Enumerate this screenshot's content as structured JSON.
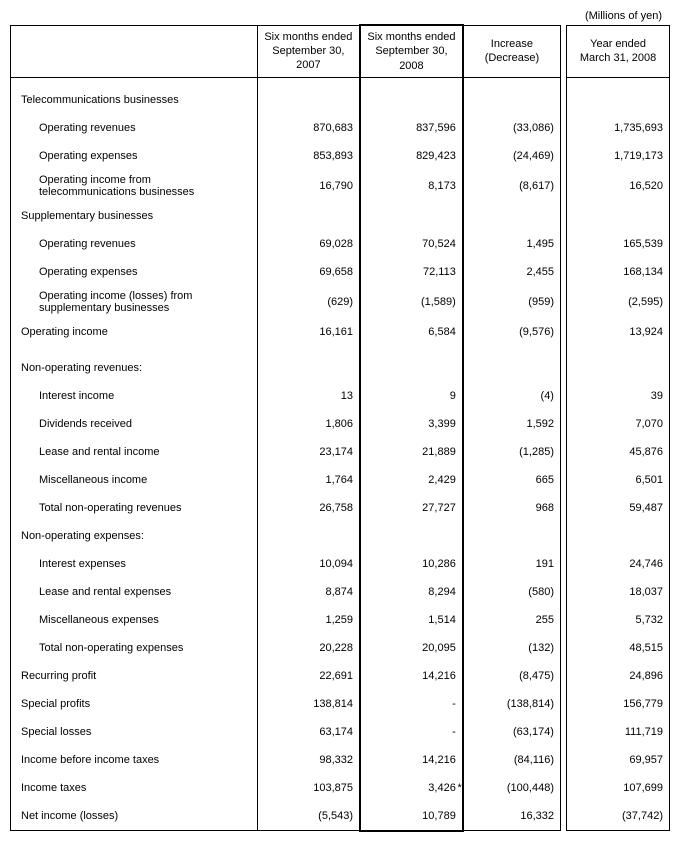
{
  "unit_label": "(Millions of yen)",
  "columns": {
    "c1": "Six months ended\nSeptember 30, 2007",
    "c2": "Six months ended\nSeptember 30, 2008",
    "c3": "Increase\n(Decrease)",
    "c4": "Year ended\nMarch 31, 2008"
  },
  "rows": {
    "telecom_header": "Telecommunications businesses",
    "telecom_rev": {
      "label": "Operating revenues",
      "c1": "870,683",
      "c2": "837,596",
      "c3": "(33,086)",
      "c4": "1,735,693"
    },
    "telecom_exp": {
      "label": "Operating expenses",
      "c1": "853,893",
      "c2": "829,423",
      "c3": "(24,469)",
      "c4": "1,719,173"
    },
    "telecom_inc": {
      "label": "Operating income from telecommunications businesses",
      "c1": "16,790",
      "c2": "8,173",
      "c3": "(8,617)",
      "c4": "16,520"
    },
    "supp_header": "Supplementary businesses",
    "supp_rev": {
      "label": "Operating revenues",
      "c1": "69,028",
      "c2": "70,524",
      "c3": "1,495",
      "c4": "165,539"
    },
    "supp_exp": {
      "label": "Operating expenses",
      "c1": "69,658",
      "c2": "72,113",
      "c3": "2,455",
      "c4": "168,134"
    },
    "supp_inc": {
      "label": "Operating income (losses) from supplementary businesses",
      "c1": "(629)",
      "c2": "(1,589)",
      "c3": "(959)",
      "c4": "(2,595)"
    },
    "op_income": {
      "label": "Operating income",
      "c1": "16,161",
      "c2": "6,584",
      "c3": "(9,576)",
      "c4": "13,924"
    },
    "nor_header": "Non-operating revenues:",
    "interest_inc": {
      "label": "Interest income",
      "c1": "13",
      "c2": "9",
      "c3": "(4)",
      "c4": "39"
    },
    "dividends": {
      "label": "Dividends received",
      "c1": "1,806",
      "c2": "3,399",
      "c3": "1,592",
      "c4": "7,070"
    },
    "lease_inc": {
      "label": "Lease and rental income",
      "c1": "23,174",
      "c2": "21,889",
      "c3": "(1,285)",
      "c4": "45,876"
    },
    "misc_inc": {
      "label": "Miscellaneous income",
      "c1": "1,764",
      "c2": "2,429",
      "c3": "665",
      "c4": "6,501"
    },
    "total_nor": {
      "label": "Total non-operating revenues",
      "c1": "26,758",
      "c2": "27,727",
      "c3": "968",
      "c4": "59,487"
    },
    "noe_header": "Non-operating expenses:",
    "interest_exp": {
      "label": "Interest expenses",
      "c1": "10,094",
      "c2": "10,286",
      "c3": "191",
      "c4": "24,746"
    },
    "lease_exp": {
      "label": "Lease and rental expenses",
      "c1": "8,874",
      "c2": "8,294",
      "c3": "(580)",
      "c4": "18,037"
    },
    "misc_exp": {
      "label": "Miscellaneous expenses",
      "c1": "1,259",
      "c2": "1,514",
      "c3": "255",
      "c4": "5,732"
    },
    "total_noe": {
      "label": "Total non-operating expenses",
      "c1": "20,228",
      "c2": "20,095",
      "c3": "(132)",
      "c4": "48,515"
    },
    "recurring": {
      "label": "Recurring profit",
      "c1": "22,691",
      "c2": "14,216",
      "c3": "(8,475)",
      "c4": "24,896"
    },
    "sp_profits": {
      "label": "Special profits",
      "c1": "138,814",
      "c2": "-",
      "c3": "(138,814)",
      "c4": "156,779"
    },
    "sp_losses": {
      "label": "Special losses",
      "c1": "63,174",
      "c2": "-",
      "c3": "(63,174)",
      "c4": "111,719"
    },
    "inc_before": {
      "label": "Income before income taxes",
      "c1": "98,332",
      "c2": "14,216",
      "c3": "(84,116)",
      "c4": "69,957"
    },
    "inc_taxes": {
      "label": "Income taxes",
      "c1": "103,875",
      "c2": "3,426",
      "c3": "(100,448)",
      "c4": "107,699"
    },
    "net_income": {
      "label": "Net income (losses)",
      "c1": "(5,543)",
      "c2": "10,789",
      "c3": "16,332",
      "c4": "(37,742)"
    }
  }
}
